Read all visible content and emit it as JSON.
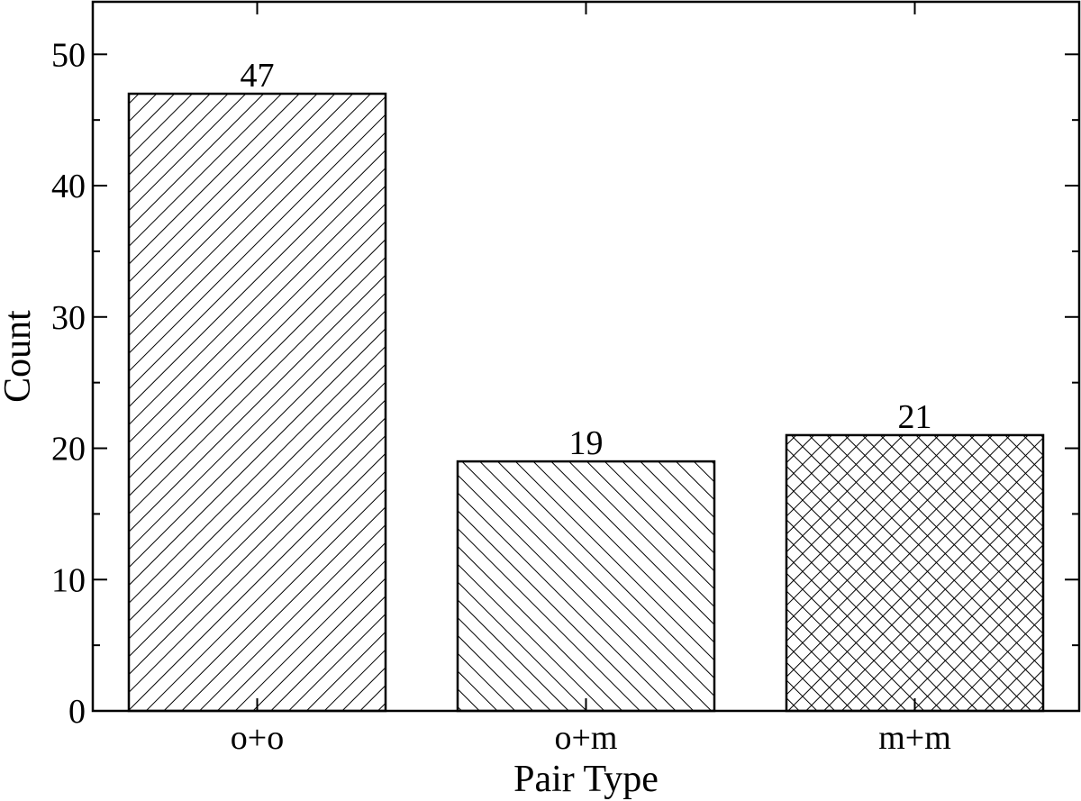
{
  "chart_data": {
    "type": "bar",
    "categories": [
      "o+o",
      "o+m",
      "m+m"
    ],
    "values": [
      47,
      19,
      21
    ],
    "data_labels": [
      "47",
      "19",
      "21"
    ],
    "patterns": [
      "diagonal-up",
      "diagonal-down",
      "crosshatch"
    ],
    "title": "",
    "xlabel": "Pair Type",
    "ylabel": "Count",
    "ylim": [
      0,
      54
    ],
    "yticks": [
      0,
      10,
      20,
      30,
      40,
      50
    ],
    "ytick_labels": [
      "0",
      "10",
      "20",
      "30",
      "40",
      "50"
    ],
    "grid": false,
    "legend": "none",
    "colors": {
      "bar_fill": "#ffffff",
      "stroke": "#000000"
    }
  }
}
